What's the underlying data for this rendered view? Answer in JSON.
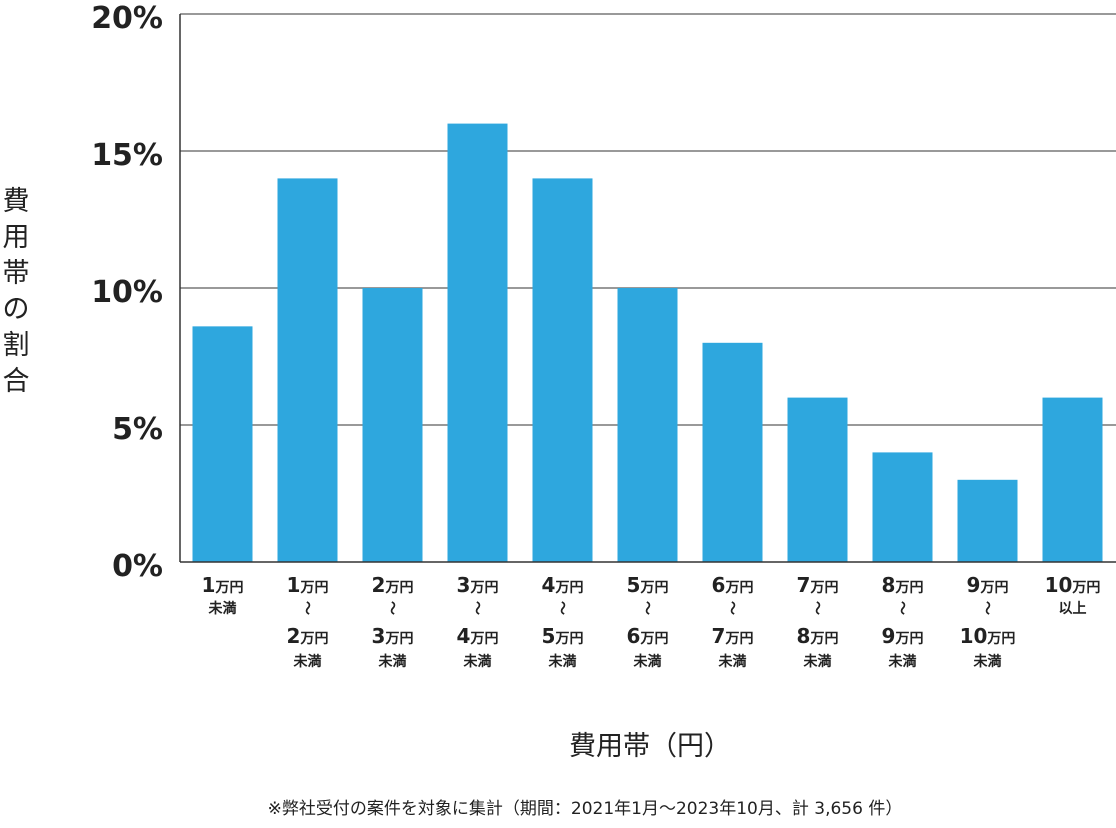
{
  "colors": {
    "bar": "#2ea7de",
    "grid": "#333333",
    "axis": "#333333",
    "text": "#222222"
  },
  "chart_data": {
    "type": "bar",
    "categories": [
      "1万円未満",
      "1万円〜2万円未満",
      "2万円〜3万円未満",
      "3万円〜4万円未満",
      "4万円〜5万円未満",
      "5万円〜6万円未満",
      "6万円〜7万円未満",
      "7万円〜8万円未満",
      "8万円〜9万円未満",
      "9万円〜10万円未満",
      "10万円以上"
    ],
    "category_labels": [
      [
        {
          "num": "1",
          "unit": "万円"
        },
        {
          "small": "未満"
        }
      ],
      [
        {
          "num": "1",
          "unit": "万円"
        },
        {
          "tilde": "〜"
        },
        {
          "num": "2",
          "unit": "万円"
        },
        {
          "small": "未満"
        }
      ],
      [
        {
          "num": "2",
          "unit": "万円"
        },
        {
          "tilde": "〜"
        },
        {
          "num": "3",
          "unit": "万円"
        },
        {
          "small": "未満"
        }
      ],
      [
        {
          "num": "3",
          "unit": "万円"
        },
        {
          "tilde": "〜"
        },
        {
          "num": "4",
          "unit": "万円"
        },
        {
          "small": "未満"
        }
      ],
      [
        {
          "num": "4",
          "unit": "万円"
        },
        {
          "tilde": "〜"
        },
        {
          "num": "5",
          "unit": "万円"
        },
        {
          "small": "未満"
        }
      ],
      [
        {
          "num": "5",
          "unit": "万円"
        },
        {
          "tilde": "〜"
        },
        {
          "num": "6",
          "unit": "万円"
        },
        {
          "small": "未満"
        }
      ],
      [
        {
          "num": "6",
          "unit": "万円"
        },
        {
          "tilde": "〜"
        },
        {
          "num": "7",
          "unit": "万円"
        },
        {
          "small": "未満"
        }
      ],
      [
        {
          "num": "7",
          "unit": "万円"
        },
        {
          "tilde": "〜"
        },
        {
          "num": "8",
          "unit": "万円"
        },
        {
          "small": "未満"
        }
      ],
      [
        {
          "num": "8",
          "unit": "万円"
        },
        {
          "tilde": "〜"
        },
        {
          "num": "9",
          "unit": "万円"
        },
        {
          "small": "未満"
        }
      ],
      [
        {
          "num": "9",
          "unit": "万円"
        },
        {
          "tilde": "〜"
        },
        {
          "num": "10",
          "unit": "万円"
        },
        {
          "small": "未満"
        }
      ],
      [
        {
          "num": "10",
          "unit": "万円"
        },
        {
          "small": "以上"
        }
      ]
    ],
    "values": [
      8.6,
      14,
      10,
      16,
      14,
      10,
      8,
      6,
      4,
      3,
      6
    ],
    "ylim": [
      0,
      20
    ],
    "yticks": [
      0,
      5,
      10,
      15,
      20
    ],
    "ytick_labels": [
      "0%",
      "5%",
      "10%",
      "15%",
      "20%"
    ],
    "ylabel": "費用帯の割合",
    "xlabel": "費用帯（円）",
    "grid": true,
    "legend": "none"
  },
  "footnote": "※弊社受付の案件を対象に集計（期間：2021年1月～2023年10月、計 3,656 件）"
}
